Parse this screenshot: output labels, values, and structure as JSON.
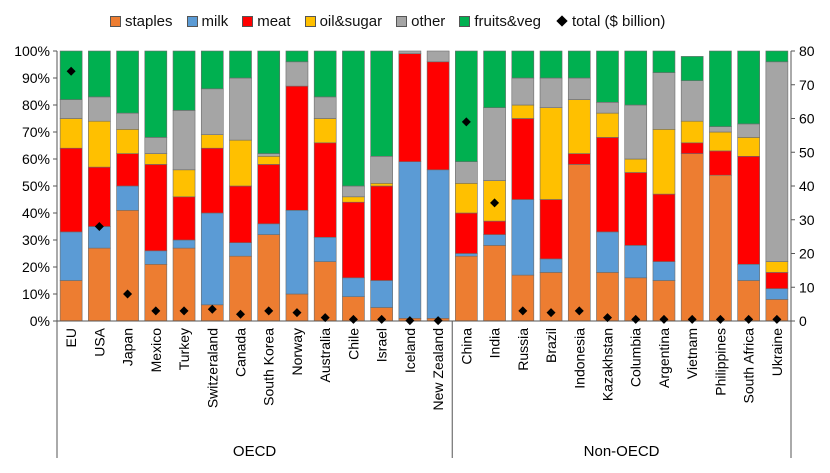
{
  "chart_data": {
    "type": "bar",
    "stacked": true,
    "categories": [
      "EU",
      "USA",
      "Japan",
      "Mexico",
      "Turkey",
      "Switzeraland",
      "Canada",
      "South Korea",
      "Norway",
      "Australia",
      "Chile",
      "Israel",
      "Iceland",
      "New Zealand",
      "China",
      "India",
      "Russia",
      "Brazil",
      "Indonesia",
      "Kazakhstan",
      "Columbia",
      "Argentina",
      "Vietnam",
      "Philippines",
      "South Africa",
      "Ukraine"
    ],
    "groups": [
      {
        "label": "OECD",
        "count": 14
      },
      {
        "label": "Non-OECD",
        "count": 12
      }
    ],
    "series": [
      {
        "name": "staples",
        "color": "#ED7D31",
        "values": [
          15,
          27,
          41,
          21,
          27,
          6,
          24,
          32,
          10,
          22,
          9,
          5,
          1,
          1,
          24,
          28,
          17,
          18,
          58,
          18,
          16,
          15,
          62,
          54,
          15,
          8
        ]
      },
      {
        "name": "milk",
        "color": "#5B9BD5",
        "values": [
          18,
          8,
          9,
          5,
          3,
          34,
          5,
          4,
          31,
          9,
          7,
          10,
          58,
          55,
          1,
          4,
          28,
          5,
          0,
          15,
          12,
          7,
          0,
          0,
          6,
          4
        ]
      },
      {
        "name": "meat",
        "color": "#FF0000",
        "values": [
          31,
          22,
          12,
          32,
          16,
          24,
          21,
          22,
          46,
          35,
          28,
          35,
          40,
          40,
          15,
          5,
          30,
          22,
          4,
          35,
          27,
          25,
          4,
          9,
          40,
          6
        ]
      },
      {
        "name": "oil&sugar",
        "color": "#FFC000",
        "values": [
          11,
          17,
          9,
          4,
          10,
          5,
          17,
          3,
          0,
          9,
          2,
          1,
          0,
          0,
          11,
          15,
          5,
          34,
          20,
          9,
          5,
          24,
          8,
          7,
          7,
          4
        ]
      },
      {
        "name": "other",
        "color": "#A5A5A5",
        "values": [
          7,
          9,
          6,
          6,
          22,
          17,
          23,
          1,
          9,
          8,
          4,
          10,
          1,
          4,
          8,
          27,
          10,
          11,
          8,
          4,
          20,
          21,
          15,
          2,
          5,
          74
        ]
      },
      {
        "name": "fruits&veg",
        "color": "#00B050",
        "values": [
          18,
          17,
          23,
          32,
          22,
          14,
          10,
          38,
          4,
          17,
          50,
          39,
          0,
          0,
          41,
          21,
          10,
          10,
          10,
          19,
          20,
          8,
          9,
          28,
          27,
          4
        ]
      }
    ],
    "total_series": {
      "name": "total ($ billion)",
      "marker": "diamond",
      "axis": "right",
      "color": "#000000",
      "values": [
        74,
        28,
        8,
        3,
        3,
        3.5,
        2,
        3,
        2.5,
        1,
        0.5,
        0.5,
        0.1,
        0.1,
        59,
        35,
        3,
        2.5,
        3,
        1,
        0.5,
        0.5,
        0.5,
        0.5,
        0.5,
        0.5
      ]
    },
    "y_left": {
      "min": 0,
      "max": 100,
      "step": 10,
      "format": "percent"
    },
    "y_right": {
      "min": 0,
      "max": 80,
      "step": 10
    },
    "legend_position": "top",
    "grid": false
  }
}
